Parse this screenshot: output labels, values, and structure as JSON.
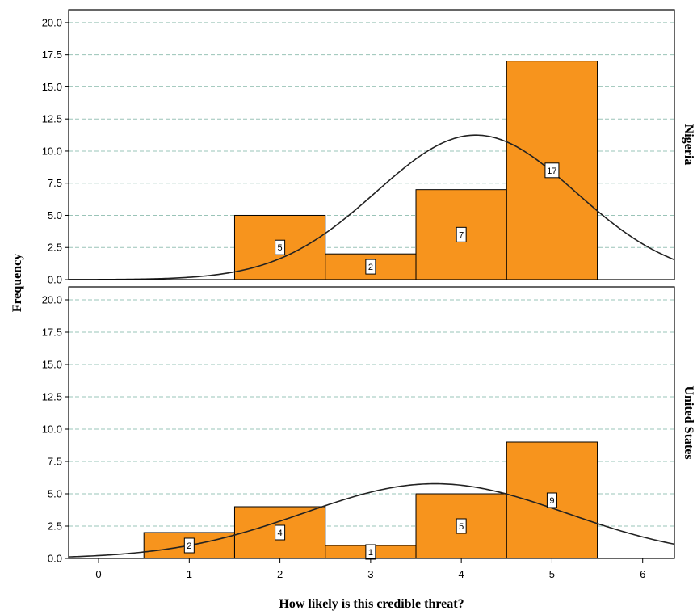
{
  "chart_data": {
    "type": "bar",
    "xlabel": "How likely is this credible threat?",
    "ylabel": "Frequency",
    "xlim": [
      -0.33,
      6.35
    ],
    "ylim": [
      0,
      21
    ],
    "x_ticks": [
      "0",
      "1",
      "2",
      "3",
      "4",
      "5",
      "6"
    ],
    "y_ticks": [
      "0.0",
      "2.5",
      "5.0",
      "7.5",
      "10.0",
      "12.5",
      "15.0",
      "17.5",
      "20.0"
    ],
    "bar_color": "#f7941d",
    "grid_color": "#9ac4b8",
    "panels": [
      {
        "name": "Nigeria",
        "bins": [
          {
            "x": 2,
            "value": 5,
            "label": "5"
          },
          {
            "x": 3,
            "value": 2,
            "label": "2"
          },
          {
            "x": 4,
            "value": 7,
            "label": "7"
          },
          {
            "x": 5,
            "value": 17,
            "label": "17"
          }
        ],
        "normal_curve": {
          "mean": 4.16,
          "sd": 1.1,
          "n": 31
        }
      },
      {
        "name": "United States",
        "bins": [
          {
            "x": 1,
            "value": 2,
            "label": "2"
          },
          {
            "x": 2,
            "value": 4,
            "label": "4"
          },
          {
            "x": 3,
            "value": 1,
            "label": "1"
          },
          {
            "x": 4,
            "value": 5,
            "label": "5"
          },
          {
            "x": 5,
            "value": 9,
            "label": "9"
          }
        ],
        "normal_curve": {
          "mean": 3.71,
          "sd": 1.45,
          "n": 21
        }
      }
    ]
  }
}
